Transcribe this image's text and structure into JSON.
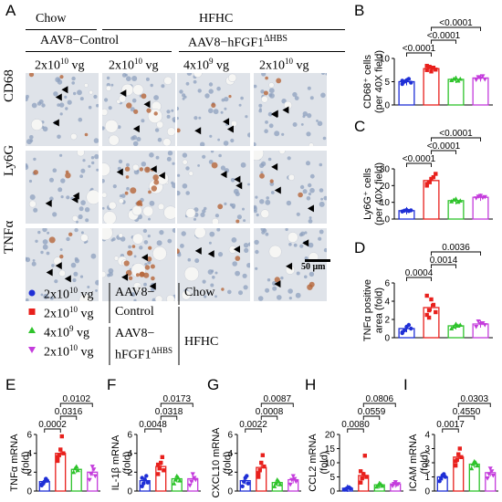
{
  "figure": {
    "panel_letters": [
      "A",
      "B",
      "C",
      "D",
      "E",
      "F",
      "G",
      "H",
      "I"
    ],
    "micrograph": {
      "group_headers": {
        "chow": "Chow",
        "hfhc": "HFHC",
        "control": "AAV8−Control",
        "fgf": "AAV8−hFGF1",
        "fgf_sup": "ΔHBS"
      },
      "doses": [
        "2x10",
        "2x10",
        "4x10",
        "2x10"
      ],
      "dose_exps": [
        "10",
        "10",
        "9",
        "10"
      ],
      "dose_unit": " vg",
      "rows": [
        "CD68",
        "Ly6G",
        "TNFα"
      ],
      "scale_bar": "50 μm"
    },
    "legend": {
      "items": [
        {
          "dose": "2x10",
          "exp": "10",
          "unit": " vg",
          "color": "#1f2fd6",
          "marker": "circle"
        },
        {
          "dose": "2x10",
          "exp": "10",
          "unit": " vg",
          "color": "#e8201c",
          "marker": "square"
        },
        {
          "dose": "4x10",
          "exp": "9",
          "unit": " vg",
          "color": "#2ec32b",
          "marker": "triangle-up"
        },
        {
          "dose": "2x10",
          "exp": "10",
          "unit": " vg",
          "color": "#c43cdc",
          "marker": "triangle-down"
        }
      ],
      "vector_control": [
        "AAV8−",
        "Control"
      ],
      "vector_fgf": [
        "AAV8−",
        "hFGF1"
      ],
      "vector_fgf_sup": "ΔHBS",
      "diet_chow": "Chow",
      "diet_hfhc": "HFHC"
    }
  },
  "chart_data": [
    {
      "panel": "B",
      "type": "bar",
      "categories": [
        "Chow 2x10^10",
        "Control 2x10^10",
        "hFGF1 4x10^9",
        "hFGF1 2x10^10"
      ],
      "ylabel": "CD68⁺ cells",
      "ylabel2": "(per 40X field)",
      "ylim": [
        0,
        10
      ],
      "yticks": [
        0,
        5,
        10
      ],
      "values": [
        5,
        7.8,
        5.5,
        5.8
      ],
      "points": [
        [
          4.5,
          5,
          5.3,
          5.6,
          4.8,
          5.2
        ],
        [
          7.5,
          8.2,
          7.2,
          8,
          7.6,
          8.4
        ],
        [
          5.3,
          5.6,
          5.8,
          5.2,
          5.6
        ],
        [
          5.4,
          6,
          5.7,
          6.2,
          5.5
        ]
      ],
      "comparisons": [
        {
          "from": 0,
          "to": 1,
          "label": "<0.0001"
        },
        {
          "from": 1,
          "to": 2,
          "label": "<0.0001"
        },
        {
          "from": 1,
          "to": 3,
          "label": "<0.0001"
        }
      ]
    },
    {
      "panel": "C",
      "type": "bar",
      "categories": [
        "Chow 2x10^10",
        "Control 2x10^10",
        "hFGF1 4x10^9",
        "hFGF1 2x10^10"
      ],
      "ylabel": "Ly6G⁺ cells",
      "ylabel2": "(per 40X field)",
      "ylim": [
        0,
        30
      ],
      "yticks": [
        0,
        10,
        20,
        30
      ],
      "values": [
        5,
        23,
        11,
        13
      ],
      "points": [
        [
          4.5,
          5,
          5.4,
          4.8,
          5.2
        ],
        [
          20,
          22,
          24,
          25,
          27,
          21
        ],
        [
          10.5,
          11.5,
          12,
          10.2,
          11
        ],
        [
          12.5,
          13.5,
          14,
          12.8,
          13.2
        ]
      ],
      "comparisons": [
        {
          "from": 0,
          "to": 1,
          "label": "<0.0001"
        },
        {
          "from": 1,
          "to": 2,
          "label": "<0.0001"
        },
        {
          "from": 1,
          "to": 3,
          "label": "<0.0001"
        }
      ]
    },
    {
      "panel": "D",
      "type": "bar",
      "categories": [
        "Chow 2x10^10",
        "Control 2x10^10",
        "hFGF1 4x10^9",
        "hFGF1 2x10^10"
      ],
      "ylabel": "TNFα positive",
      "ylabel2": "area (fold)",
      "ylim": [
        0,
        6
      ],
      "yticks": [
        0,
        2,
        4,
        6
      ],
      "values": [
        1,
        3.3,
        1.3,
        1.5
      ],
      "points": [
        [
          0.6,
          0.8,
          1.2,
          1.4,
          1.0,
          0.5
        ],
        [
          2.5,
          3.0,
          4.2,
          3.6,
          2.8,
          4.6,
          2.2
        ],
        [
          1.0,
          1.2,
          1.5,
          1.3,
          1.4
        ],
        [
          1.2,
          1.8,
          1.5,
          1.6,
          1.4
        ]
      ],
      "comparisons": [
        {
          "from": 0,
          "to": 1,
          "label": "0.0004"
        },
        {
          "from": 1,
          "to": 2,
          "label": "0.0014"
        },
        {
          "from": 1,
          "to": 3,
          "label": "0.0036"
        }
      ]
    },
    {
      "panel": "E",
      "type": "bar",
      "categories": [
        "Chow 2x10^10",
        "Control 2x10^10",
        "hFGF1 4x10^9",
        "hFGF1 2x10^10"
      ],
      "ylabel": "TNFα mRNA",
      "ylabel2": "(fold)",
      "ylim": [
        0,
        6
      ],
      "yticks": [
        0,
        2,
        4,
        6
      ],
      "values": [
        1,
        4,
        2.3,
        2
      ],
      "points": [
        [
          0.6,
          0.8,
          1.0,
          1.3,
          1.1,
          0.7
        ],
        [
          3.2,
          3.8,
          4.4,
          5.8,
          4.0,
          3.6
        ],
        [
          2.0,
          2.4,
          2.6,
          2.2
        ],
        [
          1.2,
          1.8,
          2.6,
          2.3,
          1.6
        ]
      ],
      "comparisons": [
        {
          "from": 0,
          "to": 1,
          "label": "0.0002"
        },
        {
          "from": 1,
          "to": 2,
          "label": "0.0316"
        },
        {
          "from": 1,
          "to": 3,
          "label": "0.0102"
        }
      ]
    },
    {
      "panel": "F",
      "type": "bar",
      "categories": [
        "Chow 2x10^10",
        "Control 2x10^10",
        "hFGF1 4x10^9",
        "hFGF1 2x10^10"
      ],
      "ylabel": "IL-1β mRNA",
      "ylabel2": "(fold)",
      "ylim": [
        0,
        6
      ],
      "yticks": [
        0,
        2,
        4,
        6
      ],
      "values": [
        1.1,
        2.6,
        1.3,
        1.3
      ],
      "points": [
        [
          0.5,
          0.8,
          1.2,
          1.6,
          0.9,
          1.4
        ],
        [
          1.8,
          2.4,
          3.0,
          3.6,
          2.2,
          2.8
        ],
        [
          0.8,
          1.2,
          1.6,
          1.4,
          1.1
        ],
        [
          0.6,
          1.0,
          1.8,
          1.4,
          1.2
        ]
      ],
      "comparisons": [
        {
          "from": 0,
          "to": 1,
          "label": "0.0048"
        },
        {
          "from": 1,
          "to": 2,
          "label": "0.0318"
        },
        {
          "from": 1,
          "to": 3,
          "label": "0.0173"
        }
      ]
    },
    {
      "panel": "G",
      "type": "bar",
      "categories": [
        "Chow 2x10^10",
        "Control 2x10^10",
        "hFGF1 4x10^9",
        "hFGF1 2x10^10"
      ],
      "ylabel": "CXCL10 mRNA",
      "ylabel2": "(fold)",
      "ylim": [
        0,
        6
      ],
      "yticks": [
        0,
        2,
        4,
        6
      ],
      "values": [
        1.1,
        2.5,
        0.9,
        1.2
      ],
      "points": [
        [
          0.5,
          1.0,
          1.4,
          1.6,
          0.8
        ],
        [
          1.5,
          2.2,
          3.0,
          3.8,
          2.6,
          1.9
        ],
        [
          0.5,
          0.8,
          1.2,
          1.0,
          0.7
        ],
        [
          0.7,
          1.2,
          1.6,
          1.3,
          1.0
        ]
      ],
      "comparisons": [
        {
          "from": 0,
          "to": 1,
          "label": "0.0022"
        },
        {
          "from": 1,
          "to": 2,
          "label": "0.0008"
        },
        {
          "from": 1,
          "to": 3,
          "label": "0.0087"
        }
      ]
    },
    {
      "panel": "H",
      "type": "bar",
      "categories": [
        "Chow 2x10^10",
        "Control 2x10^10",
        "hFGF1 4x10^9",
        "hFGF1 2x10^10"
      ],
      "ylabel": "CCL2 mRNA",
      "ylabel2": "(fold)",
      "ylim": [
        0,
        20
      ],
      "yticks": [
        0,
        5,
        10,
        15,
        20
      ],
      "values": [
        1,
        5.5,
        2.2,
        2.5
      ],
      "points": [
        [
          0.5,
          0.8,
          1.1,
          1.3,
          0.9
        ],
        [
          3.0,
          4.5,
          6.0,
          12.5,
          5.0,
          7.0
        ],
        [
          1.5,
          2.0,
          2.8,
          2.4,
          1.8
        ],
        [
          1.8,
          2.6,
          3.2,
          2.2,
          2.5
        ]
      ],
      "comparisons": [
        {
          "from": 0,
          "to": 1,
          "label": "0.0080"
        },
        {
          "from": 1,
          "to": 2,
          "label": "0.0559"
        },
        {
          "from": 1,
          "to": 3,
          "label": "0.0806"
        }
      ]
    },
    {
      "panel": "I",
      "type": "bar",
      "categories": [
        "Chow 2x10^10",
        "Control 2x10^10",
        "hFGF1 4x10^9",
        "hFGF1 2x10^10"
      ],
      "ylabel": "ICAM mRNA",
      "ylabel2": "(fold)",
      "ylim": [
        0,
        4
      ],
      "yticks": [
        0,
        1,
        2,
        3,
        4
      ],
      "values": [
        1,
        2.4,
        1.9,
        1.3
      ],
      "points": [
        [
          0.7,
          0.9,
          1.1,
          1.2,
          1.0
        ],
        [
          1.8,
          2.2,
          2.6,
          3.0,
          2.4,
          2.1
        ],
        [
          1.6,
          1.9,
          2.1,
          2.0,
          1.8
        ],
        [
          0.9,
          1.2,
          1.6,
          1.4,
          1.1
        ]
      ],
      "comparisons": [
        {
          "from": 0,
          "to": 1,
          "label": "0.0017"
        },
        {
          "from": 1,
          "to": 2,
          "label": "0.4550"
        },
        {
          "from": 1,
          "to": 3,
          "label": "0.0303"
        }
      ]
    }
  ]
}
